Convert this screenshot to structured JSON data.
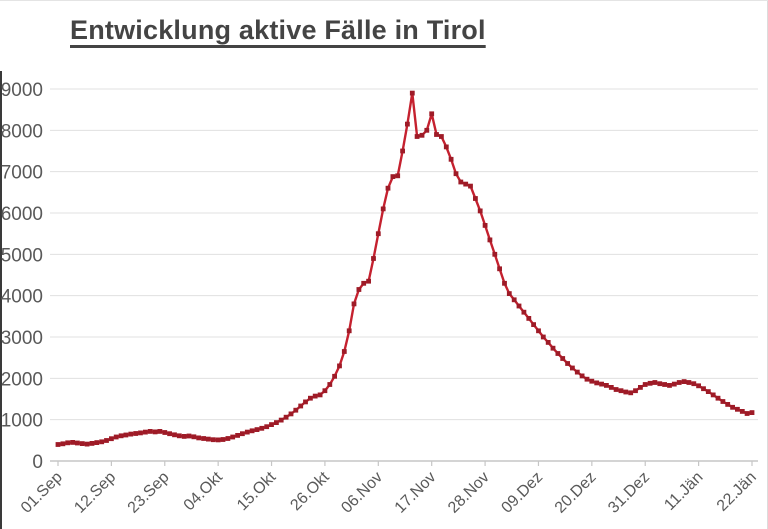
{
  "page": {
    "title": "Entwicklung aktive Fälle in Tirol"
  },
  "colors": {
    "line": "#c5212f",
    "marker": "#9e1b27",
    "gridline": "#e0e0e0",
    "axis": "#c6c6c6",
    "tick": "#c6c6c6",
    "axis_label": "#595959",
    "title_text": "#444444"
  },
  "chart_data": {
    "type": "line",
    "title": "Entwicklung aktive Fälle in Tirol",
    "series_name": "aktive Fälle in Tirol",
    "marker": "square",
    "grid": "horizontal",
    "legend": "none",
    "ylim": [
      0,
      9000
    ],
    "y_tick_step": 1000,
    "y_tick_labels": [
      "0",
      "1000",
      "2000",
      "3000",
      "4000",
      "5000",
      "6000",
      "7000",
      "8000",
      "9000"
    ],
    "x_tick_labels": [
      "01.Sep",
      "12.Sep",
      "23.Sep",
      "04.Okt",
      "15.Okt",
      "26.Okt",
      "06.Nov",
      "17.Nov",
      "28.Nov",
      "09.Dez",
      "20.Dez",
      "31.Dez",
      "11.Jän",
      "22.Jän"
    ],
    "x_tick_indices": [
      0,
      11,
      22,
      33,
      44,
      55,
      66,
      77,
      88,
      99,
      110,
      121,
      132,
      143
    ],
    "x_unit": "Tag (01.Sep - 22.Jän)",
    "values": [
      400,
      415,
      440,
      450,
      435,
      420,
      410,
      425,
      445,
      465,
      495,
      540,
      580,
      610,
      630,
      650,
      665,
      680,
      700,
      715,
      705,
      715,
      690,
      660,
      635,
      610,
      595,
      605,
      585,
      560,
      545,
      530,
      515,
      510,
      520,
      545,
      580,
      620,
      660,
      700,
      730,
      760,
      790,
      830,
      880,
      930,
      990,
      1060,
      1140,
      1230,
      1330,
      1430,
      1520,
      1570,
      1600,
      1700,
      1850,
      2050,
      2300,
      2650,
      3150,
      3800,
      4150,
      4300,
      4350,
      4900,
      5500,
      6100,
      6600,
      6880,
      6900,
      7500,
      8150,
      8900,
      7850,
      7880,
      8000,
      8400,
      7900,
      7850,
      7600,
      7300,
      6950,
      6750,
      6700,
      6650,
      6350,
      6050,
      5700,
      5350,
      5000,
      4650,
      4300,
      4050,
      3900,
      3750,
      3600,
      3450,
      3300,
      3150,
      3000,
      2870,
      2730,
      2600,
      2480,
      2360,
      2250,
      2150,
      2060,
      1980,
      1930,
      1890,
      1860,
      1830,
      1780,
      1730,
      1700,
      1670,
      1650,
      1700,
      1780,
      1850,
      1880,
      1900,
      1870,
      1850,
      1830,
      1860,
      1900,
      1920,
      1900,
      1870,
      1820,
      1750,
      1680,
      1600,
      1520,
      1440,
      1370,
      1300,
      1250,
      1200,
      1150,
      1170
    ]
  }
}
